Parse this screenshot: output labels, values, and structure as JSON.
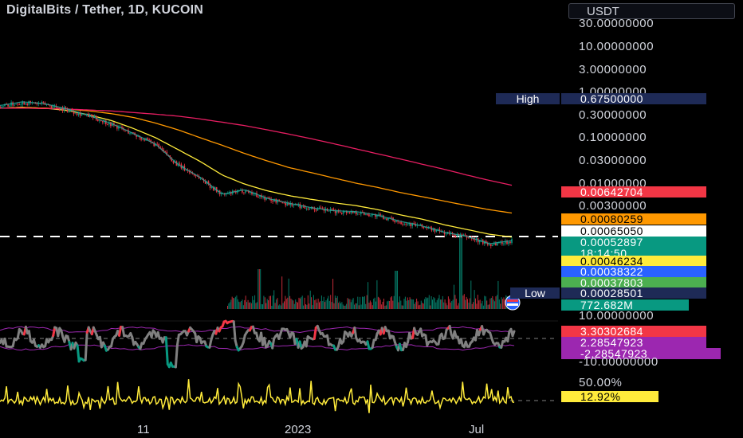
{
  "header": {
    "title": "DigitalBits / Tether, 1D, KUCOIN",
    "currency_button": "USDT"
  },
  "price_scale": {
    "ticks": [
      "30.00000000",
      "10.00000000",
      "3.00000000",
      "1.00000000",
      "0.30000000",
      "0.10000000",
      "0.03000000",
      "0.01000000",
      "0.00300000"
    ]
  },
  "high_low": {
    "high_label": "High",
    "high_value": "0.67500000",
    "low_label": "Low",
    "low_value": "0.00028501"
  },
  "price_labels": [
    {
      "text": "0.00642704",
      "bg": "#f23645",
      "fg": "#ffffff"
    },
    {
      "text": "0.00080259",
      "bg": "#ff9800",
      "fg": "#000000"
    },
    {
      "text": "0.00065050",
      "bg": "#ffffff",
      "fg": "#000000"
    },
    {
      "text": "0.00052897",
      "bg": "#089981",
      "fg": "#ffffff"
    },
    {
      "text": "18:14:50",
      "bg": "#089981",
      "fg": "#ffffff"
    },
    {
      "text": "0.00046234",
      "bg": "#ffeb3b",
      "fg": "#000000"
    },
    {
      "text": "0.00038322",
      "bg": "#2962ff",
      "fg": "#ffffff"
    },
    {
      "text": "0.00037803",
      "bg": "#4caf50",
      "fg": "#ffffff"
    }
  ],
  "volume_label": {
    "text": "772.682M",
    "bg": "#089981",
    "fg": "#ffffff"
  },
  "oscillator": {
    "scale_top": "10.00000000",
    "scale_bottom": "-10.00000000",
    "labels": [
      {
        "text": "3.30302684",
        "bg": "#f23645",
        "fg": "#ffffff"
      },
      {
        "text": "2.28547923",
        "bg": "#9c27b0",
        "fg": "#ffffff"
      },
      {
        "text": "-2.28547923",
        "bg": "#9c27b0",
        "fg": "#ffffff"
      }
    ]
  },
  "volatility": {
    "scale_top": "50.00%",
    "label": {
      "text": "12.92%",
      "bg": "#ffeb3b",
      "fg": "#000000"
    }
  },
  "time_axis": {
    "labels": [
      "11",
      "2023",
      "Jul"
    ]
  },
  "colors": {
    "background": "#000000",
    "up": "#089981",
    "down": "#f23645",
    "ma_red": "#e91e63",
    "ma_orange": "#ff9800",
    "ma_yellow": "#ffeb3b",
    "ma_green": "#26a69a",
    "osc_line": "#808080",
    "osc_band": "#9c27b0",
    "vol_line": "#ffeb3b"
  },
  "chart_data": {
    "type": "line",
    "title": "DigitalBits / Tether, 1D, KUCOIN",
    "yscale": "log",
    "y_ticks": [
      30,
      10,
      3,
      1,
      0.3,
      0.1,
      0.03,
      0.01,
      0.003
    ],
    "x_labels": [
      "11",
      "2023",
      "Jul"
    ],
    "series": [
      {
        "values": [
          0.5,
          0.6,
          0.55,
          0.42,
          0.3,
          0.2,
          0.12,
          0.07,
          0.025,
          0.013,
          0.0055,
          0.007,
          0.0045,
          0.0035,
          0.0028,
          0.0024,
          0.0023,
          0.0019,
          0.0014,
          0.0011,
          0.0008,
          0.00065,
          0.00045,
          0.00053
        ]
      },
      {
        "values": [
          0.45,
          0.47,
          0.45,
          0.4,
          0.32,
          0.24,
          0.16,
          0.1,
          0.055,
          0.03,
          0.015,
          0.0095,
          0.0068,
          0.0053,
          0.0044,
          0.0037,
          0.0032,
          0.0026,
          0.002,
          0.0016,
          0.0012,
          0.00095,
          0.00075,
          0.00065
        ]
      },
      {
        "values": [
          0.45,
          0.46,
          0.45,
          0.43,
          0.39,
          0.34,
          0.28,
          0.21,
          0.15,
          0.1,
          0.068,
          0.045,
          0.031,
          0.022,
          0.017,
          0.013,
          0.01,
          0.008,
          0.0062,
          0.005,
          0.004,
          0.0032,
          0.0026,
          0.0022
        ]
      },
      {
        "values": [
          0.45,
          0.45,
          0.44,
          0.43,
          0.41,
          0.39,
          0.36,
          0.33,
          0.3,
          0.26,
          0.22,
          0.185,
          0.15,
          0.12,
          0.095,
          0.074,
          0.057,
          0.044,
          0.034,
          0.026,
          0.02,
          0.015,
          0.0115,
          0.009
        ]
      }
    ]
  }
}
